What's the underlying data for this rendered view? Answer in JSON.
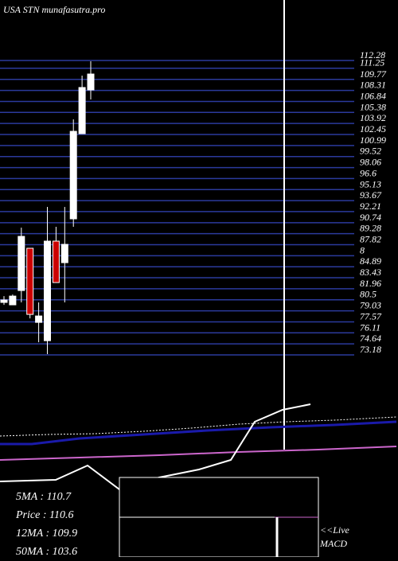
{
  "chart_data": {
    "type": "candlestick",
    "title": "USA STN munafasutra.pro",
    "ylim": [
      73.18,
      112.28
    ],
    "yticks": [
      112.28,
      111.25,
      109.77,
      108.31,
      106.84,
      105.38,
      103.92,
      102.45,
      100.99,
      99.52,
      98.06,
      96.6,
      95.13,
      93.67,
      92.21,
      90.74,
      89.28,
      87.82,
      {
        "value": 86.35,
        "label": "8"
      },
      84.89,
      83.43,
      81.96,
      80.5,
      79.03,
      77.57,
      76.11,
      74.64,
      73.18
    ],
    "up_color": "#ffffff",
    "down_color": "#cc0000",
    "grid_color": "#2b3a9c",
    "open": [
      80.15,
      79.83,
      81.73,
      87.34,
      77.5,
      75.07,
      88.29,
      85.43,
      91.25,
      102.56,
      108.37
    ],
    "high": [
      80.99,
      81.2,
      90.08,
      87.34,
      80.15,
      92.83,
      90.19,
      92.83,
      104.46,
      110.27,
      112.17
    ],
    "low": [
      79.83,
      79.83,
      80.15,
      78.03,
      74.86,
      73.28,
      82.79,
      80.15,
      90.19,
      102.56,
      107.1
    ],
    "close": [
      80.47,
      80.99,
      88.92,
      78.56,
      78.35,
      88.29,
      82.79,
      87.86,
      102.87,
      108.69,
      110.48
    ],
    "stats": [
      "5MA : 110.7",
      "Price : 110.6",
      "12MA : 109.9",
      "50MA : 103.6"
    ],
    "panel_labels": [
      "<<Live",
      "MACD"
    ]
  }
}
